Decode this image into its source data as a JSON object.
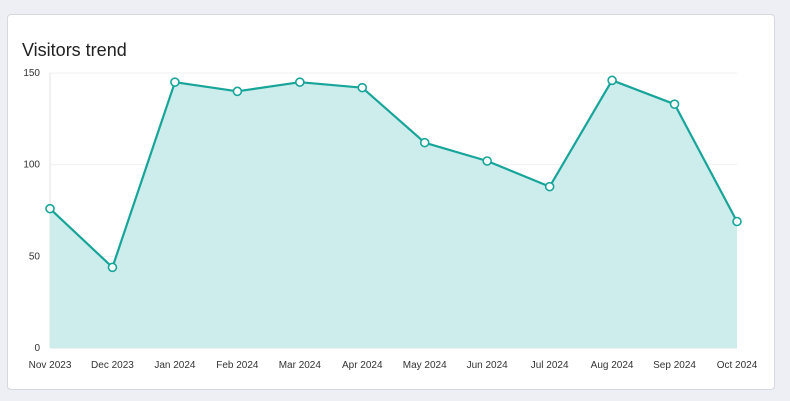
{
  "card": {
    "title": "Visitors trend"
  },
  "chart_data": {
    "type": "area",
    "title": "Visitors trend",
    "xlabel": "",
    "ylabel": "",
    "categories": [
      "Nov 2023",
      "Dec 2023",
      "Jan 2024",
      "Feb 2024",
      "Mar 2024",
      "Apr 2024",
      "May 2024",
      "Jun 2024",
      "Jul 2024",
      "Aug 2024",
      "Sep 2024",
      "Oct 2024"
    ],
    "series": [
      {
        "values": [
          76,
          44,
          145,
          140,
          145,
          142,
          112,
          102,
          88,
          146,
          133,
          69
        ]
      }
    ],
    "ylim": [
      0,
      150
    ],
    "yticks": [
      0,
      50,
      100,
      150
    ],
    "grid": true,
    "legend": "none",
    "colors": {
      "line": "#17a59a",
      "fill": "#cdecec",
      "grid": "#f0f0f0",
      "axis": "#e0e0e0"
    }
  }
}
